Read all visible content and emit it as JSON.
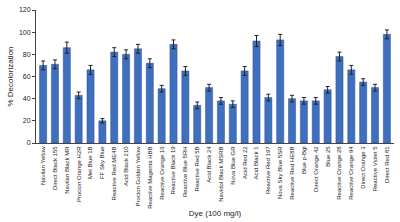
{
  "chart_data": {
    "type": "bar",
    "xlabel": "Dye (100 mg/l)",
    "ylabel": "% Decolorization",
    "categories": [
      "Navilan Yellow",
      "Direct Black 155",
      "Navilan Black MR",
      "Procion Orange H2R",
      "Met Blue 1B",
      "FF Sky Blue",
      "Reactive Red ME4B",
      "Acid Black 210",
      "Procion Golden Yellow",
      "Reactive Magenta HBB",
      "Reactive Orange 16",
      "Reactive Black 19",
      "Reactive Blue 5RH",
      "Reactive Red 5B",
      "Acid Black 24",
      "Navidol Black MSRB",
      "Nova Blue GR",
      "Acid Red 22",
      "Acid Black 1",
      "Reactive Red 197",
      "Nova Sky Blue 5SR",
      "Reactive Red HE8B",
      "Blue p-Bgl",
      "Direct Orange 42",
      "Blue 25",
      "Reactive Orange 28",
      "Reactive Orange 94",
      "Direct Orange 3",
      "Reactive Violet 5",
      "Direct Red 81"
    ],
    "values": [
      70,
      71,
      86,
      43,
      66,
      20,
      82,
      80,
      85,
      72,
      49,
      89,
      65,
      34,
      50,
      38,
      35,
      65,
      92,
      41,
      93,
      40,
      38,
      38,
      48,
      78,
      66,
      55,
      50,
      98
    ],
    "errors": [
      4,
      4,
      5,
      3,
      4,
      2,
      4,
      4,
      4,
      4,
      3,
      4,
      4,
      3,
      3,
      3,
      3,
      4,
      5,
      3,
      5,
      3,
      3,
      3,
      3,
      4,
      4,
      3,
      3,
      4
    ],
    "color": "#3f6fbf",
    "ylim": [
      0,
      120
    ],
    "yticks": [
      0,
      20,
      40,
      60,
      80,
      100,
      120
    ],
    "grid": false
  }
}
